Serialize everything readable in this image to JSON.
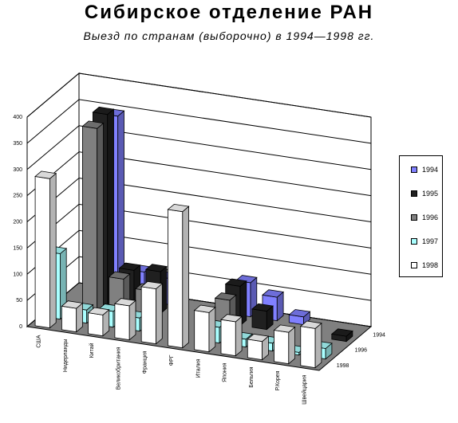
{
  "title": "Сибирское отделение РАН",
  "subtitle": "Выезд по странам (выборочно) в 1994—1998 гг.",
  "chart_data": {
    "type": "bar",
    "subtype": "3d-clustered",
    "title": "Сибирское отделение РАН",
    "subtitle": "Выезд по странам (выборочно) в 1994—1998 гг.",
    "categories": [
      "США",
      "Нидерланды",
      "Китай",
      "Великобритания",
      "Франция",
      "ФРГ",
      "Италия",
      "Япония",
      "Бельгия",
      "Р.Корея",
      "Швейцария"
    ],
    "y_ticks": [
      0,
      50,
      100,
      150,
      200,
      250,
      300,
      350,
      400
    ],
    "ylim": [
      0,
      400
    ],
    "depth_labels": [
      "1994",
      "1996",
      "1998"
    ],
    "legend_position": "right",
    "grid": true,
    "series": [
      {
        "name": "1994",
        "color": "#8080ff",
        "values": [
          0,
          345,
          55,
          50,
          0,
          0,
          65,
          45,
          15,
          0,
          0
        ]
      },
      {
        "name": "1995",
        "color": "#202020",
        "values": [
          0,
          365,
          75,
          80,
          0,
          0,
          75,
          35,
          0,
          0,
          10
        ]
      },
      {
        "name": "1996",
        "color": "#808080",
        "values": [
          0,
          355,
          75,
          60,
          0,
          0,
          65,
          0,
          0,
          0,
          0
        ]
      },
      {
        "name": "1997",
        "color": "#aaffff",
        "values": [
          125,
          25,
          30,
          25,
          0,
          0,
          30,
          15,
          15,
          5,
          20
        ]
      },
      {
        "name": "1998",
        "color": "#ffffff",
        "values": [
          285,
          45,
          40,
          65,
          105,
          260,
          75,
          65,
          35,
          60,
          75
        ]
      }
    ]
  }
}
